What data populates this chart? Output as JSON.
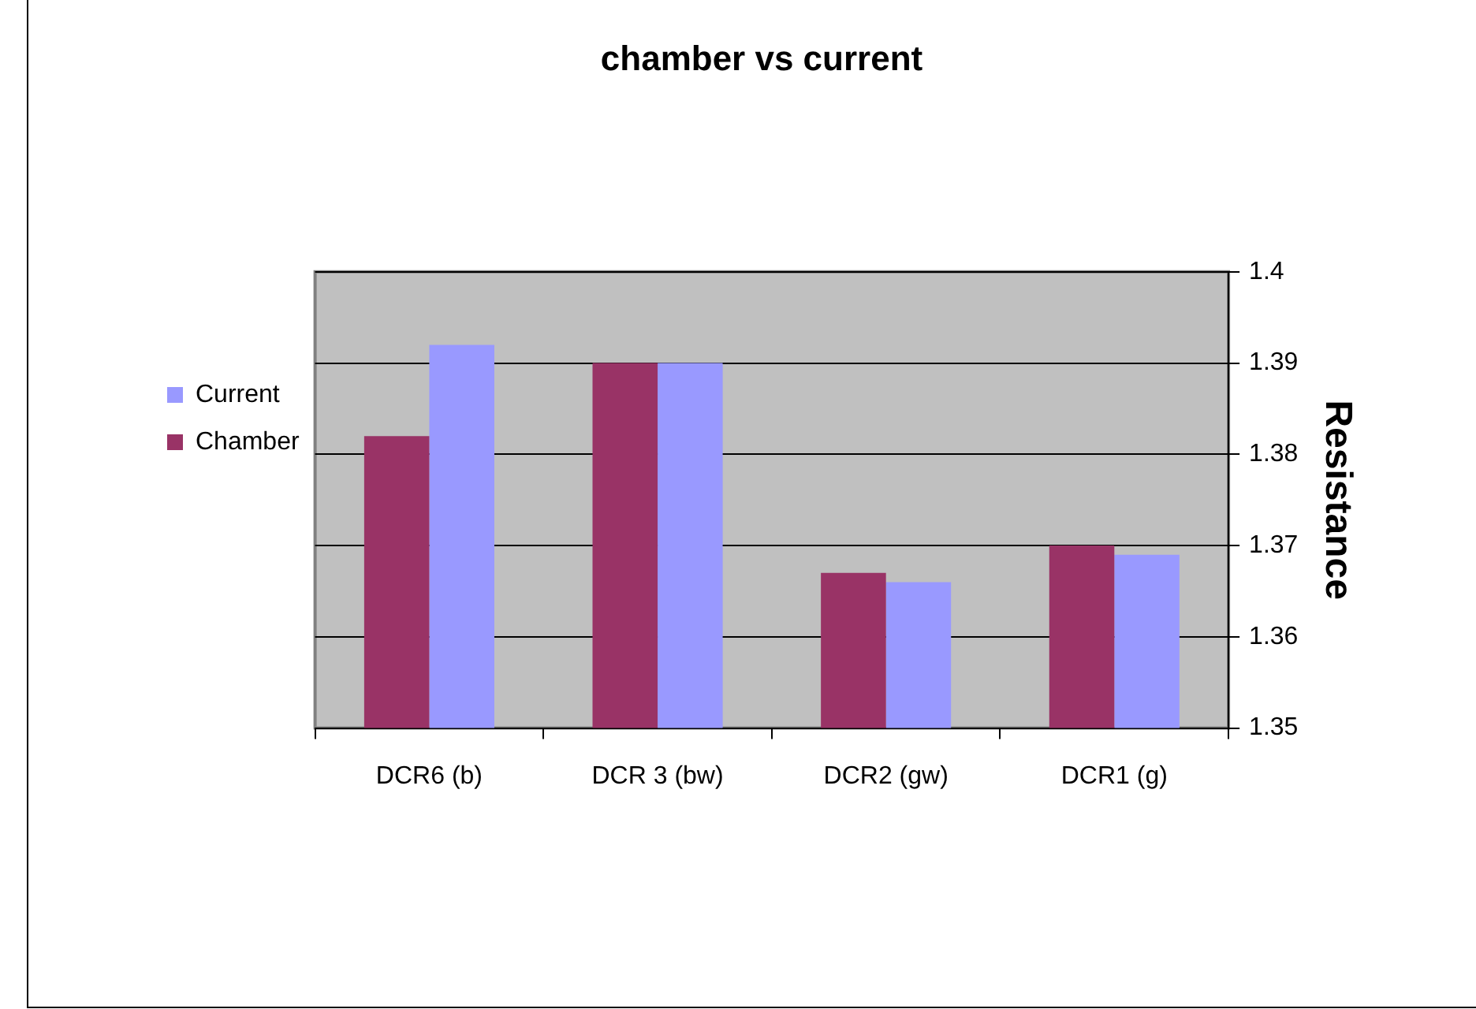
{
  "chart_data": {
    "type": "bar",
    "title": "chamber vs current",
    "ylabel": "Resistance",
    "categories": [
      "DCR6 (b)",
      "DCR 3 (bw)",
      "DCR2 (gw)",
      "DCR1 (g)"
    ],
    "series": [
      {
        "name": "Chamber",
        "color": "#993366",
        "values": [
          1.382,
          1.39,
          1.367,
          1.37
        ]
      },
      {
        "name": "Current",
        "color": "#9999ff",
        "values": [
          1.392,
          1.39,
          1.366,
          1.369
        ]
      }
    ],
    "ylim": [
      1.35,
      1.4
    ],
    "yticks": [
      1.35,
      1.36,
      1.37,
      1.38,
      1.39,
      1.4
    ],
    "grid": "y",
    "legend": "left"
  }
}
